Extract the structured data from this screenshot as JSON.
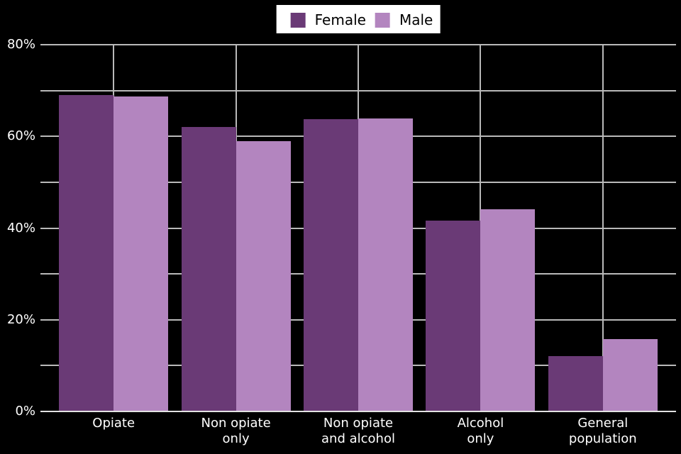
{
  "page": {
    "background_color": "#000000"
  },
  "legend": {
    "position": "top-center",
    "background_color": "#ffffff",
    "text_color": "#000000",
    "items": [
      {
        "label": "Female",
        "color": "#6a3a76"
      },
      {
        "label": "Male",
        "color": "#b385bf"
      }
    ]
  },
  "chart_data": {
    "type": "bar",
    "title": "",
    "xlabel": "",
    "ylabel": "",
    "categories": [
      "Opiate",
      "Non opiate only",
      "Non opiate and alcohol",
      "Alcohol only",
      "General population"
    ],
    "category_label_lines": [
      [
        "Opiate"
      ],
      [
        "Non opiate",
        "only"
      ],
      [
        "Non opiate",
        "and alcohol"
      ],
      [
        "Alcohol",
        "only"
      ],
      [
        "General",
        "population"
      ]
    ],
    "series": [
      {
        "name": "Female",
        "color": "#6a3a76",
        "values": [
          69.0,
          62.1,
          63.8,
          41.7,
          12.1
        ]
      },
      {
        "name": "Male",
        "color": "#b385bf",
        "values": [
          68.7,
          59.0,
          63.9,
          44.1,
          15.8
        ]
      }
    ],
    "y_axis": {
      "min": 0,
      "max": 80,
      "gridline_step": 10,
      "label_step": 20,
      "tick_format": "percent",
      "tick_labels": [
        "0%",
        "20%",
        "40%",
        "60%",
        "80%"
      ]
    },
    "grid": true,
    "gridline_color": "#b9b9b9",
    "axis_line_color": "#e2e2e2",
    "tick_text_color": "#ffffff",
    "background_color": "#000000",
    "legend_position": "top-center"
  }
}
